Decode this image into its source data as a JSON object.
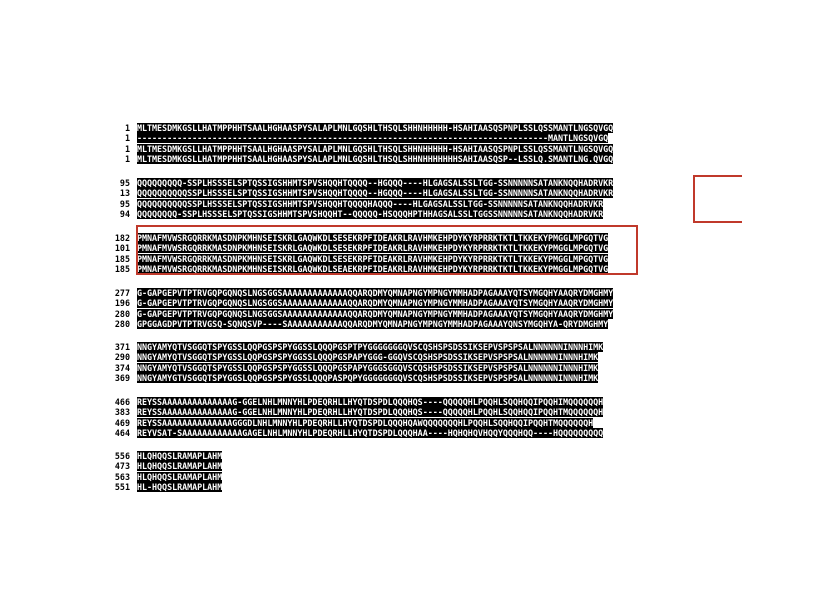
{
  "alignment": {
    "blocks": [
      {
        "rows": [
          {
            "start": "1",
            "seq": "MLTMESDMKGSLLHATMPPHHTSAALHGHAASPYSALAPLMNLGQSHLTHSQLSHHNHHHHH-HSAHIAASQSPNPLSSLQSSMANTLNGSQVGQ"
          },
          {
            "start": "1",
            "seq": "----------------------------------------------------------------------------------MANTLNGSQVGQ"
          },
          {
            "start": "1",
            "seq": "MLTMESDMKGSLLHATMPPHHTSAALHGHAASPYSALAPLMNLGQSHLTHSQLSHHNHHHHH-HSAHIAASQSPNPLSSLQSSMANTLNGSQVGQ"
          },
          {
            "start": "1",
            "seq": "MLTMESDMKGSLLHATMPPHHTSAALHGHAASPYSALAPLMNLGQSHLTHSQLSHHNHHHHHHHSAHIAASQSP--LSSLQ.SMANTLNG.QVGQ"
          }
        ]
      },
      {
        "rows": [
          {
            "start": "95",
            "seq": "QQQQQQQQQ-SSPLHSSSELSPTQSSIGSHHMTSPVSHQQHTQQQQ--HGQQQ----HLGAGSALSSLTGG-SSNNNNNSATANKNQQHADRVKR"
          },
          {
            "start": "13",
            "seq": "QQQQQQQQQQSSPLHSSSELSPTQSSIGSHHMTSPVSHQQHTQQQQ--HGQQQ----HLGAGSALSSLTGG-SSNNNNNSATANKNQQHADRVKR"
          },
          {
            "start": "95",
            "seq": "QQQQQQQQQQSSPLHSSSELSPTQSSIGSHHMTSPVSHQQHTQQQQHAQQQ----HLGAGSALSSLTGG-SSNNNNNSATANKNQQHADRVKR"
          },
          {
            "start": "94",
            "seq": "QQQQQQQQ-SSPLHSSSELSPTQSSIGSHHMTSPVSHQQHT--QQQQQ-HSQQQHPTHHAGSALSSLTGGSSNNNNNSATANKNQQHADRVKR"
          }
        ]
      },
      {
        "rows": [
          {
            "start": "182",
            "seq": "PMNAFMVWSRGQRRKMASDNPKMHNSEISKRLGAQWKDLSESEKRPFIDEAKRLRAVHMKEHPDYKYRPRRKTKTLTKKEKYPMGGLMPGQTVG"
          },
          {
            "start": "101",
            "seq": "PMNAFMVWSRGQRRKMASDNPKMHNSEISKRLGAQWKDLSESEKRPFIDEAKRLRAVHMKEHPDYKYRPRRKTKTLTKKEKYPMGGLMPGQTVG"
          },
          {
            "start": "185",
            "seq": "PMNAFMVWSRGQRRKMASDNPKMHNSEISKRLGAQWKDLSESEKRPFIDEAKRLRAVHMKEHPDYKYRPRRKTKTLTKKEKYPMGGLMPGQTVG"
          },
          {
            "start": "185",
            "seq": "PMNAFMVWSRGQRRKMASDNPKMHNSEISKRLGAQWKDLSEAEKRPFIDEAKRLRAVHMKEHPDYKYRPRRKTKTLTKKEKYPMGGLMPGQTVG"
          }
        ]
      },
      {
        "rows": [
          {
            "start": "277",
            "seq": "G-GAPGEPVTPTRVGQPGQNQSLNGSGGSAAAAAAAAAAAAAQQARQDMYQMNAPNGYMPNGYMMHADPAGAAAYQTSYMGQHYAAQRYDMGHMY"
          },
          {
            "start": "196",
            "seq": "G-GAPGEPVTPTRVGQPGQNQSLNGSGGSAAAAAAAAAAAAAQQARQDMYQMNAPNGYMPNGYMMHADPAGAAAYQTSYMGQHYAAQRYDMGHMY"
          },
          {
            "start": "280",
            "seq": "G-GAPGEPVTPTRVGQPGQNQSLNGSGGSAAAAAAAAAAAAAQQARQDMYQMNAPNGYMPNGYMMHADPAGAAAYQTSYMGQHYAAQRYDMGHMY"
          },
          {
            "start": "280",
            "seq": "GPGGAGDPVTPTRVGSQ-SQNQSVP----SAAAAAAAAAAAQQARQDMYQMNAPNGYMPNGYMMHADPAGAAAYQNSYMGQHYA-QRYDMGHMY"
          }
        ]
      },
      {
        "rows": [
          {
            "start": "371",
            "seq": "NNGYAMYQTVSGGQTSPYGSSLQQPGSPSPYGGSSLQQQPGSPTPYGGGGGGGQVSCQSHSPSDSSIKSEPVSPSPSALNNNNNNINNNHIMK"
          },
          {
            "start": "290",
            "seq": "NNGYAMYQTVSGGQTSPYGSSLQQPGSPSPYGGSSLQQQPGSPAPYGGG-GGQVSCQSHSPSDSSIKSEPVSPSPSALNNNNNNINNNHIMK"
          },
          {
            "start": "374",
            "seq": "NNGYAMYQTVSGGQTSPYGSSLQQPGSPSPYGGSSLQQQPGSPAPYGGGSGGQVSCQSHSPSDSSIKSEPVSPSPSALNNNNNNINNNHIMK"
          },
          {
            "start": "369",
            "seq": "NNGYAMYGTVSGGQTSPYGGSLQQPGSPSPYGSSLQQQPASPQPYGGGGGGGQVSCQSHSPSDSSIKSEPVSPSPSALNNNNNNINNNHIMK"
          }
        ]
      },
      {
        "rows": [
          {
            "start": "466",
            "seq": "REYSSAAAAAAAAAAAAAAG-GGELNHLMNNYHLPDEQRHLLHYQTDSPDLQQQHQS----QQQQQHLPQQHLSQQHQQIPQQHIMQQQQQQH"
          },
          {
            "start": "383",
            "seq": "REYSSAAAAAAAAAAAAAAG-GGELNHLMNNYHLPDEQRHLLHYQTDSPDLQQQHQS----QQQQQHLPQQHLSQQHQQIPQQHTMQQQQQQH"
          },
          {
            "start": "469",
            "seq": "REYSSAAAAAAAAAAAAAAGGGDLNHLMNNYHLPDEQRHLLHYQTDSPDLQQQHQAWQQQQQQQHLPQQHLSQQHQQIPQQHTMQQQQQQH"
          },
          {
            "start": "464",
            "seq": "REYVSAT-SAAAAAAAAAAAAGAGELNHLMNNYHLPDEQRHLLHYQTDSPDLQQQHAA----HQHQHQVHQQYQQQHQQ----HQQQQQQQQQ"
          }
        ]
      },
      {
        "rows": [
          {
            "start": "556",
            "seq": "HLQHQQSLRAMAPLAHM"
          },
          {
            "start": "473",
            "seq": "HLQHQQSLRAMAPLAHM"
          },
          {
            "start": "563",
            "seq": "HLQHQQSLRAMAPLAHM"
          },
          {
            "start": "551",
            "seq": "HL-HQQSLRAMAPLAHM"
          }
        ]
      }
    ]
  },
  "colors": {
    "identical_bg": "#000000",
    "identical_fg": "#ffffff",
    "highlight_box": "#c0392b"
  }
}
